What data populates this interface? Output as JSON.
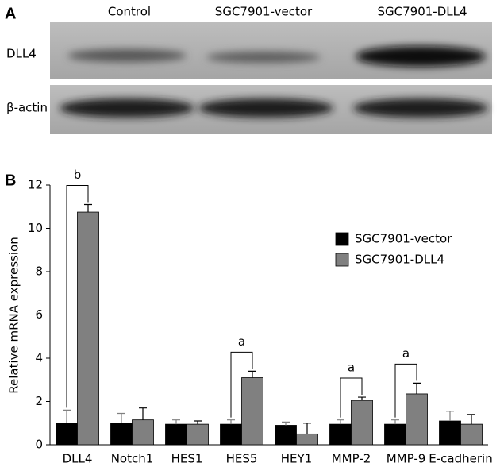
{
  "panel_a": {
    "label": "A",
    "columns": [
      "Control",
      "SGC7901-vector",
      "SGC7901-DLL4"
    ],
    "rows": [
      "DLL4",
      "β-actin"
    ]
  },
  "chart_data": {
    "type": "bar",
    "panel_label": "B",
    "y_label": "Relative mRNA expression",
    "categories": [
      "DLL4",
      "Notch1",
      "HES1",
      "HES5",
      "HEY1",
      "MMP-2",
      "MMP-9",
      "E-cadherin"
    ],
    "series": [
      {
        "name": "SGC7901-vector",
        "color": "#000000",
        "values": [
          1.0,
          1.0,
          0.95,
          0.95,
          0.9,
          0.95,
          0.95,
          1.1
        ],
        "errors": [
          0.6,
          0.45,
          0.2,
          0.2,
          0.15,
          0.2,
          0.2,
          0.45
        ]
      },
      {
        "name": "SGC7901-DLL4",
        "color": "#808080",
        "values": [
          10.75,
          1.15,
          0.95,
          3.1,
          0.5,
          2.05,
          2.35,
          0.95
        ],
        "errors": [
          0.35,
          0.55,
          0.15,
          0.3,
          0.5,
          0.15,
          0.5,
          0.45
        ]
      }
    ],
    "significance": [
      "b",
      null,
      null,
      "a",
      null,
      "a",
      "a",
      null
    ],
    "ylim": [
      0,
      12
    ],
    "yticks": [
      0,
      2,
      4,
      6,
      8,
      10,
      12
    ],
    "legend": "upper right",
    "grid": false
  }
}
